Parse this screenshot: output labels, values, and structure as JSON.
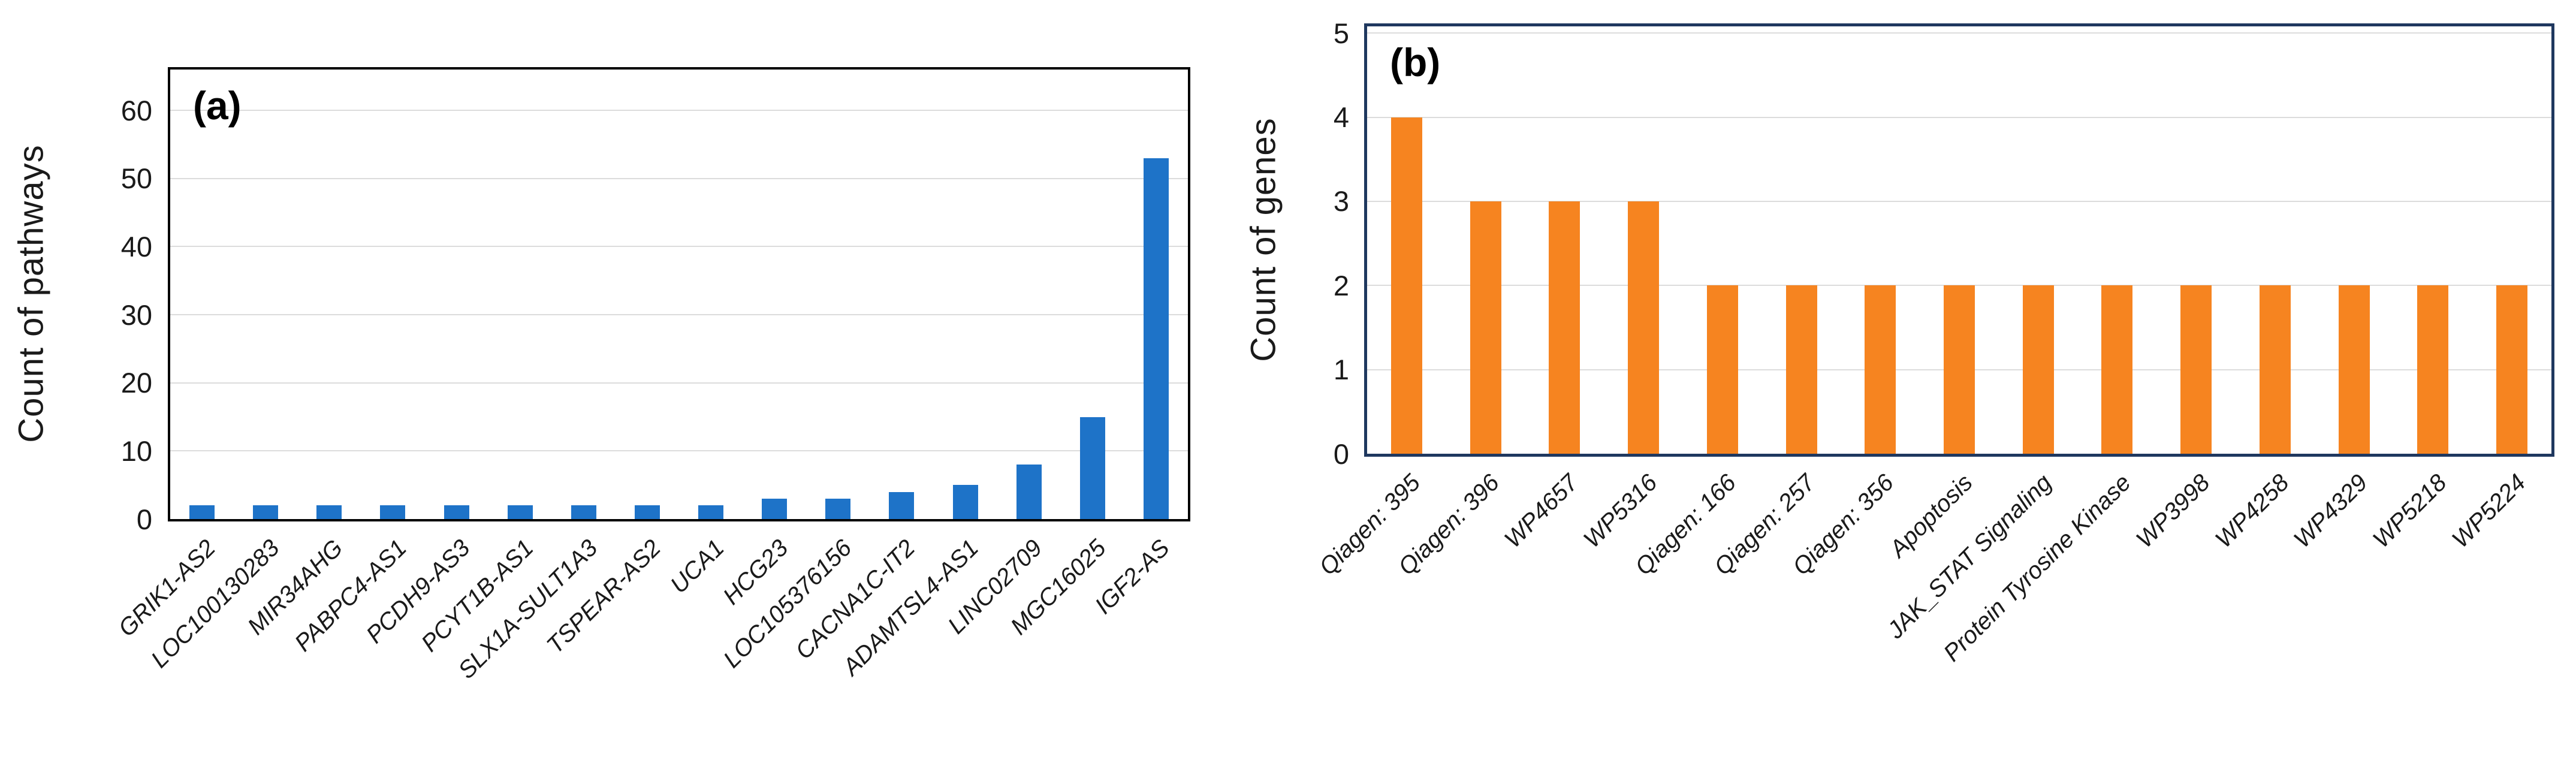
{
  "figure": {
    "background": "#ffffff",
    "panel_tags": [
      "(a)",
      "(b)"
    ]
  },
  "chart_data": [
    {
      "type": "bar",
      "title": "(a)",
      "xlabel": "",
      "ylabel": "Count of pathways",
      "categories": [
        "GRIK1-AS2",
        "LOC100130283",
        "MIR34AHG",
        "PABPC4-AS1",
        "PCDH9-AS3",
        "PCYT1B-AS1",
        "SLX1A-SULT1A3",
        "TSPEAR-AS2",
        "UCA1",
        "HCG23",
        "LOC105376156",
        "CACNA1C-IT2",
        "ADAMTSL4-AS1",
        "LINC02709",
        "MGC16025",
        "IGF2-AS"
      ],
      "values": [
        2,
        2,
        2,
        2,
        2,
        2,
        2,
        2,
        2,
        3,
        3,
        4,
        5,
        8,
        15,
        53
      ],
      "yticks": [
        0,
        10,
        20,
        30,
        40,
        50,
        60
      ],
      "ylim": [
        0,
        66
      ],
      "grid": true,
      "legend_position": "none",
      "bar_color": "#1e73c8",
      "plot_border_color": "#000000",
      "gridline_color": "#dcdcdc"
    },
    {
      "type": "bar",
      "title": "(b)",
      "xlabel": "",
      "ylabel": "Count of genes",
      "categories": [
        "Qiagen: 395",
        "Qiagen: 396",
        "WP4657",
        "WP5316",
        "Qiagen: 166",
        "Qiagen: 257",
        "Qiagen: 356",
        "Apoptosis",
        "JAK_STAT Signaling",
        "Protein Tyrosine Kinase",
        "WP3998",
        "WP4258",
        "WP4329",
        "WP5218",
        "WP5224"
      ],
      "values": [
        4,
        3,
        3,
        3,
        2,
        2,
        2,
        2,
        2,
        2,
        2,
        2,
        2,
        2,
        2
      ],
      "yticks": [
        0,
        1,
        2,
        3,
        4,
        5
      ],
      "ylim": [
        0,
        5.08
      ],
      "grid": true,
      "legend_position": "none",
      "bar_color": "#f68420",
      "plot_border_color": "#1f385f",
      "gridline_color": "#dcdcdc"
    }
  ]
}
